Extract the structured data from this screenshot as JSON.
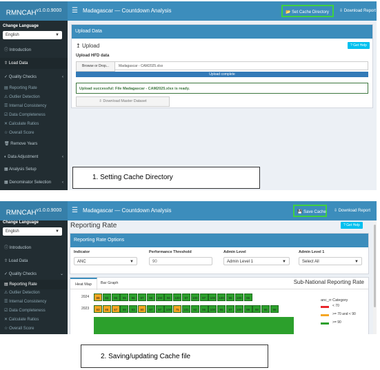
{
  "app": {
    "brand": "RMNCAH",
    "version": "v1.0.0.9000",
    "version2": "v1.0.0.9000"
  },
  "panel1": {
    "title": "Madagascar — Countdown Analysis",
    "cache_btn": "Set Cache Directory",
    "download_btn": "Download Report",
    "upload_box": {
      "header": "Upload Data",
      "upload_label": "Upload",
      "help": "Get Help",
      "hfd_label": "Upload HFD data",
      "browse": "Browse or Drop...",
      "filename": "Madagascar - CAM2025.xlsx",
      "progress": "Upload complete",
      "success": "Upload successful: File Madagascar - CAM2025.xlsx is ready.",
      "download_master": "Download Master Dataset"
    },
    "caption": "1.  Setting Cache Directory"
  },
  "panel2": {
    "title": "Madagascar — Countdown Analysis",
    "cache_btn": "Save Cache",
    "download_btn": "Download Report",
    "page_title": "Reporting Rate",
    "help": "Get Help",
    "options": {
      "header": "Reporting Rate Options",
      "indicator_label": "Indicator",
      "indicator_value": "ANC",
      "threshold_label": "Performance Threshold",
      "threshold_value": "90",
      "admin_label": "Admin Level",
      "admin_value": "Admin Level 1",
      "admin1_label": "Admin Level 1",
      "admin1_value": "Select All"
    },
    "tabs": [
      "Heat Map",
      "Bar Graph"
    ],
    "chart_title": "Sub-National Reporting Rate",
    "legend": {
      "title": "anc_rr Category",
      "items": [
        "< 70",
        ">= 70 and < 90",
        ">= 90"
      ]
    },
    "heatmap": {
      "rows": [
        {
          "year": "2024",
          "values": [
            "89",
            "93",
            "96",
            "95",
            "96",
            "97",
            "95",
            "100",
            "96",
            "100",
            "97",
            "100",
            "97",
            "100",
            "100",
            "95",
            "100",
            "96"
          ]
        },
        {
          "year": "2023",
          "values": [
            "83",
            "85",
            "87",
            "98",
            "93",
            "80",
            "97",
            "97",
            "100",
            "75",
            "101",
            "92",
            "96",
            "100",
            "95",
            "97",
            "100",
            "98",
            "98",
            "96",
            "98"
          ]
        }
      ]
    },
    "caption": "2.  Saving/updating Cache file"
  },
  "sidebar": {
    "change_language": "Change Language",
    "language": "English",
    "items": [
      {
        "label": "Introduction",
        "icon": "info-icon"
      },
      {
        "label": "Load Data",
        "icon": "upload-icon"
      },
      {
        "label": "Quality Checks",
        "icon": "check-circle-icon"
      },
      {
        "label": "Reporting Rate",
        "icon": "chart-icon"
      },
      {
        "label": "Outlier Detection",
        "icon": "warning-icon"
      },
      {
        "label": "Internal Consistency",
        "icon": "list-icon"
      },
      {
        "label": "Data Completeness",
        "icon": "checkbox-icon"
      },
      {
        "label": "Calculate Ratios",
        "icon": "ratio-icon"
      },
      {
        "label": "Overall Score",
        "icon": "star-icon"
      },
      {
        "label": "Remove Years",
        "icon": "trash-icon"
      },
      {
        "label": "Data Adjustment",
        "icon": "adjust-icon"
      },
      {
        "label": "Analysis Setup",
        "icon": "settings-icon"
      },
      {
        "label": "Denominator Selection",
        "icon": "calculator-icon"
      }
    ]
  },
  "colors": {
    "green": "#2ca02c",
    "orange": "#f5a623",
    "red": "#e8262b",
    "header": "#3c8dbc",
    "sidebar": "#222d32"
  }
}
